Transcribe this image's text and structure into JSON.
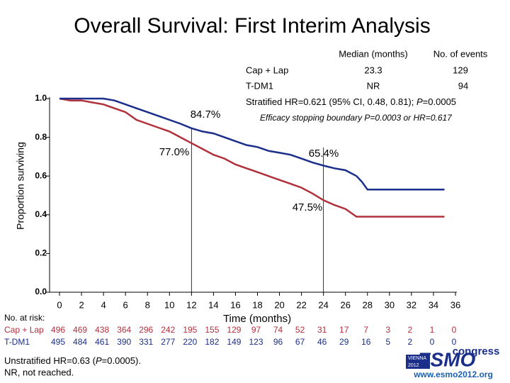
{
  "chart_data": {
    "type": "line",
    "title": "Overall Survival: First Interim Analysis",
    "y_label": "Proportion surviving",
    "x_label": "Time (months)",
    "xlim": [
      0,
      36
    ],
    "xticks": [
      0,
      2,
      4,
      6,
      8,
      10,
      12,
      14,
      16,
      18,
      20,
      22,
      24,
      26,
      28,
      30,
      32,
      34,
      36
    ],
    "ylim": [
      0,
      1
    ],
    "yticks": [
      {
        "value": 0,
        "label": "0.0"
      },
      0.2,
      0.4,
      0.6,
      0.8,
      {
        "value": 1,
        "label": "1.0"
      }
    ],
    "reference_x": [
      12,
      24
    ],
    "annotations": [
      "84.7%",
      "77.0%",
      "65.4%",
      "47.5%"
    ],
    "series": [
      {
        "name": "Cap + Lap",
        "color": "#b0303c",
        "x": [
          0,
          1,
          2,
          3,
          4,
          5,
          6,
          7,
          8,
          9,
          10,
          11,
          12,
          13,
          14,
          15,
          16,
          17,
          18,
          19,
          20,
          21,
          22,
          23,
          24,
          25,
          26,
          27,
          35
        ],
        "values": [
          1.0,
          0.99,
          0.99,
          0.98,
          0.97,
          0.95,
          0.93,
          0.89,
          0.87,
          0.85,
          0.83,
          0.8,
          0.77,
          0.74,
          0.71,
          0.69,
          0.66,
          0.64,
          0.62,
          0.6,
          0.58,
          0.56,
          0.54,
          0.51,
          0.475,
          0.45,
          0.43,
          0.39,
          0.39
        ]
      },
      {
        "name": "T-DM1",
        "color": "#1a2e8a",
        "x": [
          0,
          2,
          4,
          5,
          6,
          7,
          8,
          9,
          10,
          11,
          12,
          13,
          14,
          15,
          16,
          17,
          18,
          19,
          20,
          21,
          22,
          23,
          24,
          25,
          26,
          27,
          27.5,
          28,
          35
        ],
        "values": [
          1.0,
          1.0,
          1.0,
          0.99,
          0.97,
          0.95,
          0.93,
          0.91,
          0.89,
          0.87,
          0.847,
          0.83,
          0.82,
          0.8,
          0.78,
          0.76,
          0.75,
          0.73,
          0.72,
          0.71,
          0.69,
          0.67,
          0.654,
          0.64,
          0.63,
          0.6,
          0.57,
          0.53,
          0.53
        ]
      }
    ],
    "legend_table": {
      "headers": [
        "Median (months)",
        "No. of events"
      ],
      "rows": [
        [
          "23.3",
          "129"
        ],
        [
          "NR",
          "94"
        ]
      ]
    },
    "hr_text": [
      "Stratified HR=0.621 (95% CI, 0.48, 0.81); ",
      "P",
      "=0.0005"
    ],
    "boundary_text": "Efficacy stopping boundary P=0.0003 or HR=0.617",
    "risk_table": {
      "label": "No. at risk:",
      "rows": [
        [
          496,
          469,
          438,
          364,
          296,
          242,
          195,
          155,
          129,
          97,
          74,
          52,
          31,
          17,
          7,
          3,
          2,
          1,
          0
        ],
        [
          495,
          484,
          461,
          390,
          331,
          277,
          220,
          182,
          149,
          123,
          96,
          67,
          46,
          29,
          16,
          5,
          2,
          0,
          0
        ]
      ]
    },
    "footnote": [
      "Unstratified HR=0.63 (",
      "P",
      "=0.0005).",
      "NR, not reached."
    ],
    "logo": {
      "word": "congress",
      "brand": "ESMO",
      "city": "VIENNA",
      "year": "2012",
      "url": "www.esmo2012.org"
    }
  }
}
